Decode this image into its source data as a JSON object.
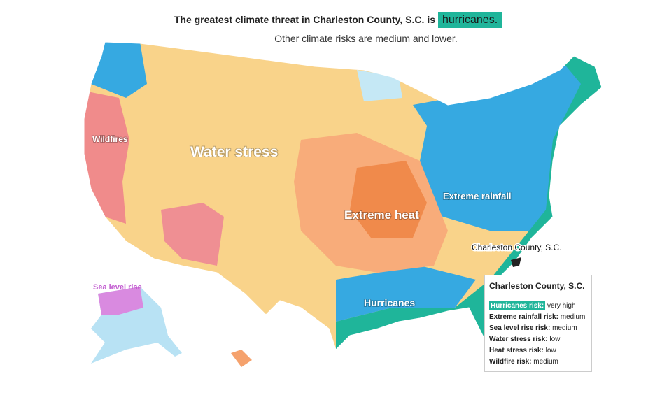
{
  "header": {
    "title": "The greatest climate threat in Charleston County, S.C. is",
    "highlight": "hurricanes.",
    "subtitle": "Other climate risks are medium and lower."
  },
  "map": {
    "region_labels": [
      "Wildfires",
      "Water stress",
      "Extreme heat",
      "Extreme rainfall",
      "Hurricanes",
      "Sea level rise"
    ],
    "callout": "Charleston County, S.C."
  },
  "tooltip": {
    "title": "Charleston County, S.C.",
    "rows": [
      {
        "risk": "Hurricanes risk:",
        "level": "very high"
      },
      {
        "risk": "Extreme rainfall risk:",
        "level": "medium"
      },
      {
        "risk": "Sea level rise risk:",
        "level": "medium"
      },
      {
        "risk": "Water stress risk:",
        "level": "low"
      },
      {
        "risk": "Heat stress risk:",
        "level": "low"
      },
      {
        "risk": "Wildfire risk:",
        "level": "medium"
      }
    ]
  }
}
